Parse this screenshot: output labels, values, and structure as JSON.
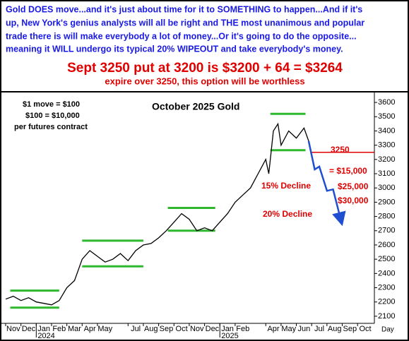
{
  "chart_data": {
    "type": "line",
    "header_lines": [
      "Gold DOES move...and it's just about time for it to SOMETHING to happen...And if it's",
      "up, New York's genius analysts will all be right and THE most unanimous and popular",
      "trade there is will make everybody a lot of money...Or it's going to do the opposite...",
      "meaning it WILL undergo its typical 20% WIPEOUT and take everybody's money."
    ],
    "headline": "Sept 3250 put at 3200 is $3200 + 64 = $3264",
    "subheadline": "expire over 3250, this option will be worthless",
    "title": "October 2025 Gold",
    "notes": [
      "$1 move = $100",
      "$100 = $10,000",
      "per futures contract"
    ],
    "annotations": [
      "3250",
      "= $15,000",
      "$25,000",
      "$30,000",
      "15% Decline",
      "20% Decline"
    ],
    "x_axis_label": "Day",
    "years": [
      {
        "value": 2,
        "label": "2024"
      },
      {
        "value": 14,
        "label": "2025"
      }
    ],
    "xlim": [
      0,
      24.1
    ],
    "xticks": [
      {
        "value": 0,
        "label": "Nov"
      },
      {
        "value": 1,
        "label": "Dec"
      },
      {
        "value": 2,
        "label": "Jan"
      },
      {
        "value": 3,
        "label": "Feb"
      },
      {
        "value": 4,
        "label": "Mar"
      },
      {
        "value": 5,
        "label": "Apr"
      },
      {
        "value": 6,
        "label": "May"
      },
      {
        "value": 8,
        "label": "Jul"
      },
      {
        "value": 9,
        "label": "Aug"
      },
      {
        "value": 10,
        "label": "Sep"
      },
      {
        "value": 11,
        "label": "Oct"
      },
      {
        "value": 12,
        "label": "Nov"
      },
      {
        "value": 13,
        "label": "Dec"
      },
      {
        "value": 14,
        "label": "Jan"
      },
      {
        "value": 15,
        "label": "Feb"
      },
      {
        "value": 17,
        "label": "Apr"
      },
      {
        "value": 18,
        "label": "May"
      },
      {
        "value": 19,
        "label": "Jun"
      },
      {
        "value": 20,
        "label": "Jul"
      },
      {
        "value": 21,
        "label": "Aug"
      },
      {
        "value": 22,
        "label": "Sep"
      },
      {
        "value": 23,
        "label": "Oct"
      }
    ],
    "ylim": [
      2050,
      3650
    ],
    "yticks": [
      2100,
      2200,
      2300,
      2400,
      2500,
      2600,
      2700,
      2800,
      2900,
      3000,
      3100,
      3200,
      3300,
      3400,
      3500,
      3600
    ],
    "series": [
      {
        "name": "October 2025 Gold",
        "color": "#000000",
        "x": [
          0,
          0.5,
          1,
          1.5,
          2,
          2.5,
          3,
          3.5,
          4,
          4.5,
          5,
          5.5,
          6,
          6.5,
          7,
          7.5,
          8,
          8.5,
          9,
          9.5,
          10,
          10.5,
          11,
          11.5,
          12,
          12.5,
          13,
          13.5,
          14,
          14.5,
          15,
          15.5,
          16,
          16.5,
          17,
          17.2,
          17.5,
          17.8,
          18,
          18.5,
          19,
          19.5,
          19.8
        ],
        "values": [
          2220,
          2240,
          2210,
          2230,
          2200,
          2190,
          2180,
          2210,
          2300,
          2350,
          2500,
          2560,
          2520,
          2480,
          2500,
          2540,
          2490,
          2560,
          2600,
          2610,
          2650,
          2700,
          2760,
          2820,
          2780,
          2700,
          2720,
          2700,
          2760,
          2820,
          2900,
          2950,
          3000,
          3100,
          3200,
          3100,
          3400,
          3450,
          3300,
          3400,
          3350,
          3420,
          3330
        ]
      },
      {
        "name": "Projection",
        "color": "#1f4fd0",
        "x": [
          19.8,
          20.2,
          20.5,
          21.0,
          21.4,
          21.9
        ],
        "values": [
          3330,
          3130,
          3150,
          2980,
          2990,
          2780
        ]
      }
    ],
    "levels": [
      {
        "x": [
          0.3,
          3.5
        ],
        "value": 2280,
        "color": "#2eb82e"
      },
      {
        "x": [
          0.3,
          3.5
        ],
        "value": 2160,
        "color": "#2eb82e"
      },
      {
        "x": [
          5,
          9
        ],
        "value": 2630,
        "color": "#2eb82e"
      },
      {
        "x": [
          5,
          9
        ],
        "value": 2450,
        "color": "#2eb82e"
      },
      {
        "x": [
          10.6,
          13.7
        ],
        "value": 2860,
        "color": "#2eb82e"
      },
      {
        "x": [
          10.6,
          13.7
        ],
        "value": 2700,
        "color": "#2eb82e"
      },
      {
        "x": [
          17.3,
          19.6
        ],
        "value": 3520,
        "color": "#2eb82e"
      },
      {
        "x": [
          17.3,
          19.6
        ],
        "value": 3265,
        "color": "#2eb82e"
      },
      {
        "x": [
          19.9,
          24.1
        ],
        "value": 3250,
        "color": "#e00000"
      }
    ]
  }
}
